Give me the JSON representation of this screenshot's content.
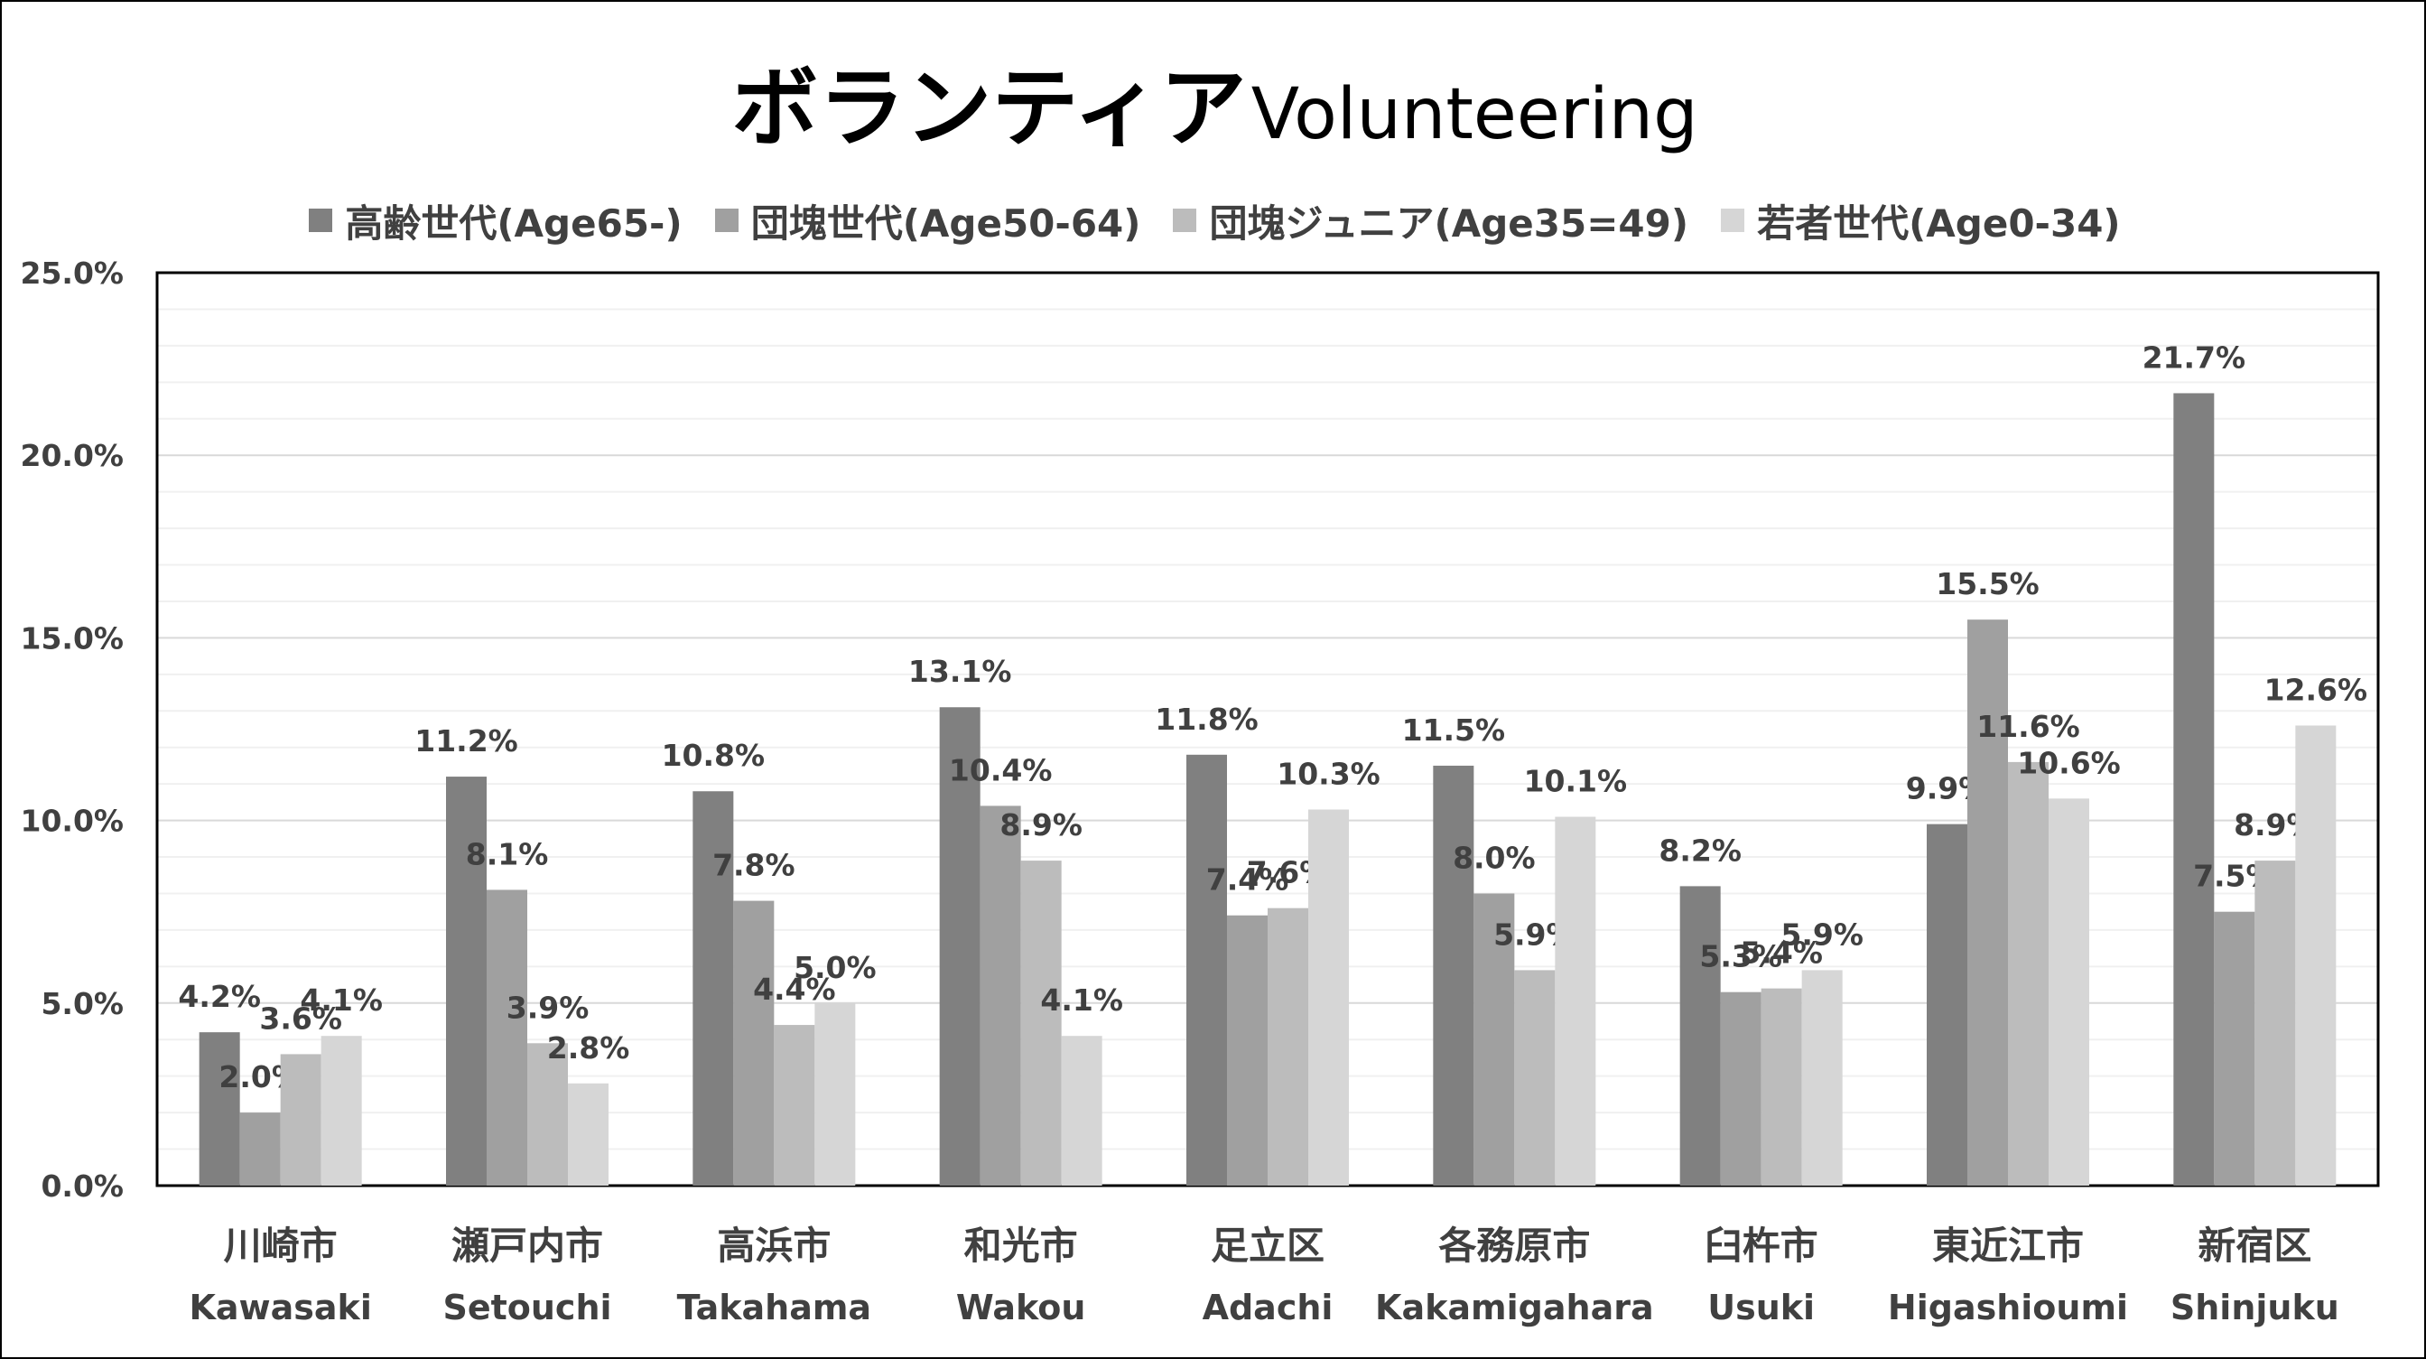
{
  "chart_data": {
    "type": "bar",
    "title": "ボランティア",
    "title_en": "Volunteering",
    "categories": [
      {
        "jp": "川崎市",
        "en": "Kawasaki"
      },
      {
        "jp": "瀬戸内市",
        "en": "Setouchi"
      },
      {
        "jp": "高浜市",
        "en": "Takahama"
      },
      {
        "jp": "和光市",
        "en": "Wakou"
      },
      {
        "jp": "足立区",
        "en": "Adachi"
      },
      {
        "jp": "各務原市",
        "en": "Kakamigahara"
      },
      {
        "jp": "臼杵市",
        "en": "Usuki"
      },
      {
        "jp": "東近江市",
        "en": "Higashioumi"
      },
      {
        "jp": "新宿区",
        "en": "Shinjuku"
      }
    ],
    "series": [
      {
        "name": "高齢世代(Age65-)",
        "color": "#808080",
        "values": [
          4.2,
          11.2,
          10.8,
          13.1,
          11.8,
          11.5,
          8.2,
          9.9,
          21.7
        ]
      },
      {
        "name": "団塊世代(Age50-64)",
        "color": "#a0a0a0",
        "values": [
          2.0,
          8.1,
          7.8,
          10.4,
          7.4,
          8.0,
          5.3,
          15.5,
          7.5
        ]
      },
      {
        "name": "団塊ジュニア(Age35=49)",
        "color": "#bcbcbc",
        "values": [
          3.6,
          3.9,
          4.4,
          8.9,
          7.6,
          5.9,
          5.4,
          11.6,
          8.9
        ]
      },
      {
        "name": "若者世代(Age0-34)",
        "color": "#d6d6d6",
        "values": [
          4.1,
          2.8,
          5.0,
          4.1,
          10.3,
          10.1,
          5.9,
          10.6,
          12.6
        ]
      }
    ],
    "y_ticks": [
      "0.0%",
      "5.0%",
      "10.0%",
      "15.0%",
      "20.0%",
      "25.0%"
    ],
    "ylim": [
      0,
      25
    ],
    "y_unit": "%",
    "legend_position": "top",
    "grid": true,
    "label_color": "#404040"
  }
}
